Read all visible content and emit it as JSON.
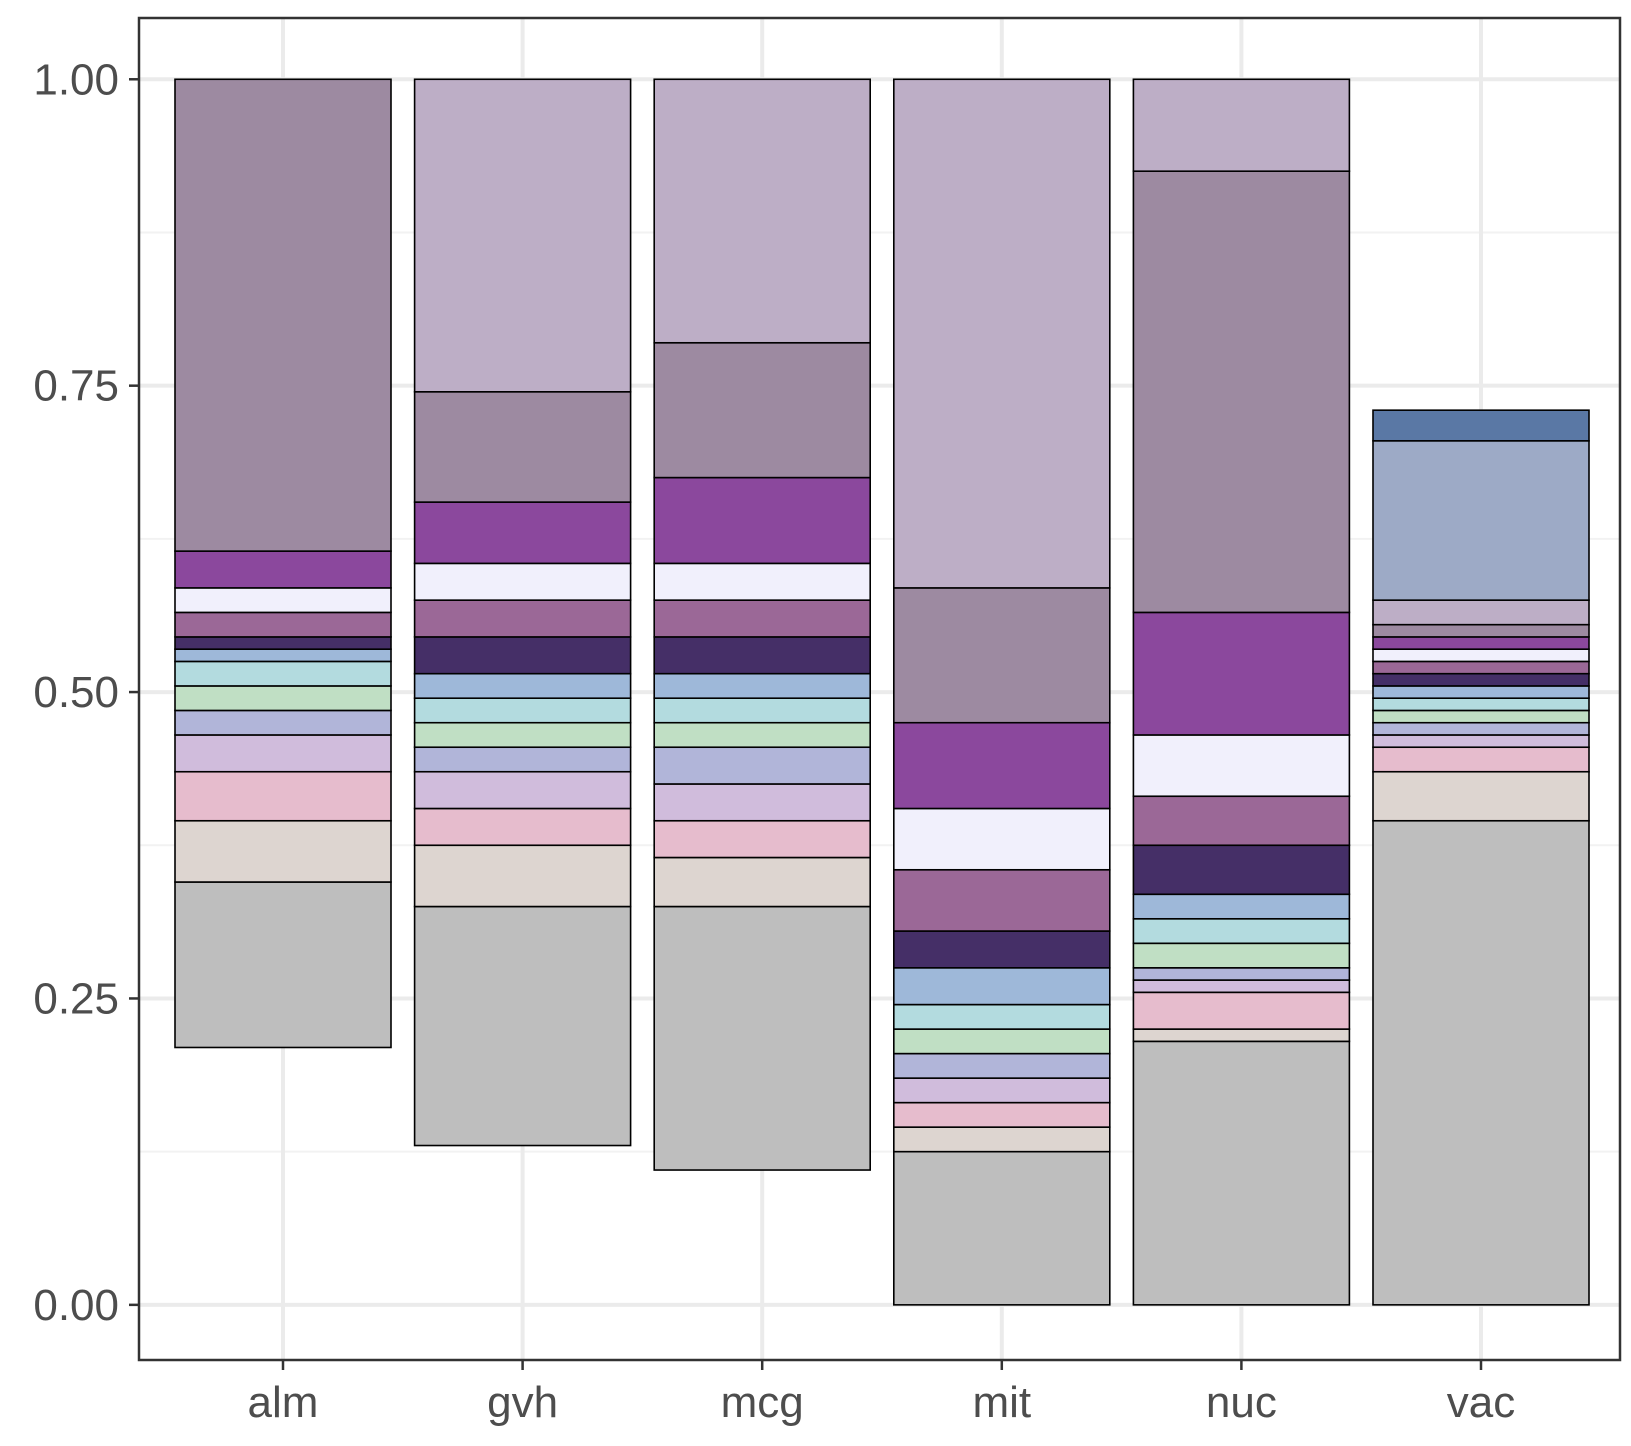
{
  "chart_data": {
    "type": "bar",
    "stacked": true,
    "title": "",
    "xlabel": "",
    "ylabel": "",
    "categories": [
      "alm",
      "gvh",
      "mcg",
      "mit",
      "nuc",
      "vac"
    ],
    "ylim": [
      -0.045,
      1.05
    ],
    "yticks": [
      0.0,
      0.25,
      0.5,
      0.75,
      1.0
    ],
    "ytick_labels": [
      "0.00",
      "0.25",
      "0.50",
      "0.75",
      "1.00"
    ],
    "grid": true,
    "legend": "none",
    "bars": [
      {
        "category": "alm",
        "segments": [
          {
            "from": 0.21,
            "to": 0.345,
            "color": "#bebebe"
          },
          {
            "from": 0.345,
            "to": 0.395,
            "color": "#ddd5d0"
          },
          {
            "from": 0.395,
            "to": 0.435,
            "color": "#e6bccd"
          },
          {
            "from": 0.435,
            "to": 0.465,
            "color": "#d0bcdc"
          },
          {
            "from": 0.465,
            "to": 0.485,
            "color": "#b1b5d9"
          },
          {
            "from": 0.485,
            "to": 0.505,
            "color": "#c0dfc4"
          },
          {
            "from": 0.505,
            "to": 0.525,
            "color": "#b3dbdf"
          },
          {
            "from": 0.525,
            "to": 0.535,
            "color": "#9eb8d9"
          },
          {
            "from": 0.535,
            "to": 0.545,
            "color": "#452f67"
          },
          {
            "from": 0.545,
            "to": 0.565,
            "color": "#9b6897"
          },
          {
            "from": 0.565,
            "to": 0.585,
            "color": "#f1f0fc"
          },
          {
            "from": 0.585,
            "to": 0.615,
            "color": "#8b489d"
          },
          {
            "from": 0.615,
            "to": 1.0,
            "color": "#9d8aa1"
          }
        ]
      },
      {
        "category": "gvh",
        "segments": [
          {
            "from": 0.13,
            "to": 0.325,
            "color": "#bebebe"
          },
          {
            "from": 0.325,
            "to": 0.375,
            "color": "#ddd5d0"
          },
          {
            "from": 0.375,
            "to": 0.405,
            "color": "#e6bccd"
          },
          {
            "from": 0.405,
            "to": 0.435,
            "color": "#d0bcdc"
          },
          {
            "from": 0.435,
            "to": 0.455,
            "color": "#b1b5d9"
          },
          {
            "from": 0.455,
            "to": 0.475,
            "color": "#c0dfc4"
          },
          {
            "from": 0.475,
            "to": 0.495,
            "color": "#b3dbdf"
          },
          {
            "from": 0.495,
            "to": 0.515,
            "color": "#9eb8d9"
          },
          {
            "from": 0.515,
            "to": 0.545,
            "color": "#452f67"
          },
          {
            "from": 0.545,
            "to": 0.575,
            "color": "#9b6897"
          },
          {
            "from": 0.575,
            "to": 0.605,
            "color": "#f1f0fc"
          },
          {
            "from": 0.605,
            "to": 0.655,
            "color": "#8b489d"
          },
          {
            "from": 0.655,
            "to": 0.745,
            "color": "#9d8aa1"
          },
          {
            "from": 0.745,
            "to": 1.0,
            "color": "#bdaec6"
          }
        ]
      },
      {
        "category": "mcg",
        "segments": [
          {
            "from": 0.11,
            "to": 0.325,
            "color": "#bebebe"
          },
          {
            "from": 0.325,
            "to": 0.365,
            "color": "#ddd5d0"
          },
          {
            "from": 0.365,
            "to": 0.395,
            "color": "#e6bccd"
          },
          {
            "from": 0.395,
            "to": 0.425,
            "color": "#d0bcdc"
          },
          {
            "from": 0.425,
            "to": 0.455,
            "color": "#b1b5d9"
          },
          {
            "from": 0.455,
            "to": 0.475,
            "color": "#c0dfc4"
          },
          {
            "from": 0.475,
            "to": 0.495,
            "color": "#b3dbdf"
          },
          {
            "from": 0.495,
            "to": 0.515,
            "color": "#9eb8d9"
          },
          {
            "from": 0.515,
            "to": 0.545,
            "color": "#452f67"
          },
          {
            "from": 0.545,
            "to": 0.575,
            "color": "#9b6897"
          },
          {
            "from": 0.575,
            "to": 0.605,
            "color": "#f1f0fc"
          },
          {
            "from": 0.605,
            "to": 0.675,
            "color": "#8b489d"
          },
          {
            "from": 0.675,
            "to": 0.785,
            "color": "#9d8aa1"
          },
          {
            "from": 0.785,
            "to": 1.0,
            "color": "#bdaec6"
          }
        ]
      },
      {
        "category": "mit",
        "segments": [
          {
            "from": 0.0,
            "to": 0.125,
            "color": "#bebebe"
          },
          {
            "from": 0.125,
            "to": 0.145,
            "color": "#ddd5d0"
          },
          {
            "from": 0.145,
            "to": 0.165,
            "color": "#e6bccd"
          },
          {
            "from": 0.165,
            "to": 0.185,
            "color": "#d0bcdc"
          },
          {
            "from": 0.185,
            "to": 0.205,
            "color": "#b1b5d9"
          },
          {
            "from": 0.205,
            "to": 0.225,
            "color": "#c0dfc4"
          },
          {
            "from": 0.225,
            "to": 0.245,
            "color": "#b3dbdf"
          },
          {
            "from": 0.245,
            "to": 0.275,
            "color": "#9eb8d9"
          },
          {
            "from": 0.275,
            "to": 0.305,
            "color": "#452f67"
          },
          {
            "from": 0.305,
            "to": 0.355,
            "color": "#9b6897"
          },
          {
            "from": 0.355,
            "to": 0.405,
            "color": "#f1f0fc"
          },
          {
            "from": 0.405,
            "to": 0.475,
            "color": "#8b489d"
          },
          {
            "from": 0.475,
            "to": 0.585,
            "color": "#9d8aa1"
          },
          {
            "from": 0.585,
            "to": 1.0,
            "color": "#bdaec6"
          }
        ]
      },
      {
        "category": "nuc",
        "segments": [
          {
            "from": 0.0,
            "to": 0.215,
            "color": "#bebebe"
          },
          {
            "from": 0.215,
            "to": 0.225,
            "color": "#ddd5d0"
          },
          {
            "from": 0.225,
            "to": 0.255,
            "color": "#e6bccd"
          },
          {
            "from": 0.255,
            "to": 0.265,
            "color": "#d0bcdc"
          },
          {
            "from": 0.265,
            "to": 0.275,
            "color": "#b1b5d9"
          },
          {
            "from": 0.275,
            "to": 0.295,
            "color": "#c0dfc4"
          },
          {
            "from": 0.295,
            "to": 0.315,
            "color": "#b3dbdf"
          },
          {
            "from": 0.315,
            "to": 0.335,
            "color": "#9eb8d9"
          },
          {
            "from": 0.335,
            "to": 0.375,
            "color": "#452f67"
          },
          {
            "from": 0.375,
            "to": 0.415,
            "color": "#9b6897"
          },
          {
            "from": 0.415,
            "to": 0.465,
            "color": "#f1f0fc"
          },
          {
            "from": 0.465,
            "to": 0.565,
            "color": "#8b489d"
          },
          {
            "from": 0.565,
            "to": 0.925,
            "color": "#9d8aa1"
          },
          {
            "from": 0.925,
            "to": 1.0,
            "color": "#bdaec6"
          }
        ]
      },
      {
        "category": "vac",
        "segments": [
          {
            "from": 0.0,
            "to": 0.395,
            "color": "#bebebe"
          },
          {
            "from": 0.395,
            "to": 0.435,
            "color": "#ddd5d0"
          },
          {
            "from": 0.435,
            "to": 0.455,
            "color": "#e6bccd"
          },
          {
            "from": 0.455,
            "to": 0.465,
            "color": "#d0bcdc"
          },
          {
            "from": 0.465,
            "to": 0.475,
            "color": "#b1b5d9"
          },
          {
            "from": 0.475,
            "to": 0.485,
            "color": "#c0dfc4"
          },
          {
            "from": 0.485,
            "to": 0.495,
            "color": "#b3dbdf"
          },
          {
            "from": 0.495,
            "to": 0.505,
            "color": "#9eb8d9"
          },
          {
            "from": 0.505,
            "to": 0.515,
            "color": "#452f67"
          },
          {
            "from": 0.515,
            "to": 0.525,
            "color": "#9b6897"
          },
          {
            "from": 0.525,
            "to": 0.535,
            "color": "#f1f0fc"
          },
          {
            "from": 0.535,
            "to": 0.545,
            "color": "#8b489d"
          },
          {
            "from": 0.545,
            "to": 0.555,
            "color": "#9d8aa1"
          },
          {
            "from": 0.555,
            "to": 0.575,
            "color": "#bdaec6"
          },
          {
            "from": 0.575,
            "to": 0.705,
            "color": "#9daac6"
          },
          {
            "from": 0.705,
            "to": 0.73,
            "color": "#5a78a5"
          }
        ]
      }
    ]
  }
}
